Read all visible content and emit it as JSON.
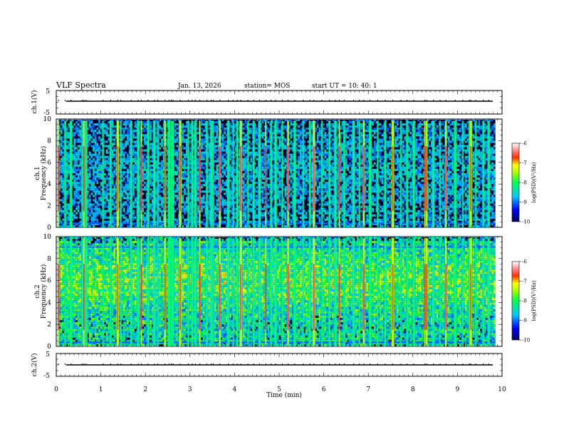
{
  "header": {
    "title": "VLF Spectra",
    "date": "Jan. 13, 2026",
    "station": "station= MOS",
    "start": "start  UT =   10: 40: 1"
  },
  "chart_data": [
    {
      "type": "line",
      "name": "ch1-waveform",
      "ylabel": "ch.1(V)",
      "ylim": [
        -5,
        5
      ],
      "yticks": [
        "5",
        "-5"
      ],
      "xlim": [
        0,
        10
      ],
      "series": [
        {
          "name": "ch.1",
          "x": [
            0,
            10
          ],
          "values": [
            0,
            0
          ]
        }
      ]
    },
    {
      "type": "heatmap",
      "name": "ch1-spectrogram",
      "ylabel": "ch.1 Frequency (kHz)",
      "ylim": [
        0,
        10
      ],
      "yticks": [
        "0",
        "2",
        "4",
        "6",
        "8",
        "10"
      ],
      "xlim": [
        0,
        10
      ],
      "colorbar": {
        "label": "log(PSD)(V²/Hz)",
        "range": [
          -10,
          -6
        ],
        "ticks": [
          "-6",
          "-7",
          "-8",
          "-9",
          "-10"
        ]
      },
      "sferic_times_min": [
        0.05,
        0.2,
        0.33,
        0.58,
        0.62,
        0.67,
        1.05,
        1.22,
        1.38,
        1.45,
        1.68,
        1.84,
        1.91,
        2.06,
        2.2,
        2.28,
        2.44,
        2.53,
        2.58,
        2.62,
        2.78,
        2.96,
        3.05,
        3.12,
        3.22,
        3.38,
        3.48,
        3.52,
        3.67,
        3.86,
        3.97,
        4.06,
        4.14,
        4.3,
        4.43,
        4.56,
        4.7,
        4.82,
        4.92,
        5.07,
        5.2,
        5.35,
        5.54,
        5.69,
        5.78,
        5.96,
        6.13,
        6.26,
        6.35,
        6.46,
        6.67,
        6.8,
        6.9,
        7.04,
        7.21,
        7.38,
        7.55,
        7.73,
        7.87,
        8.02,
        8.27,
        8.31,
        8.46,
        8.61,
        8.74,
        8.95,
        9.12,
        9.27,
        9.3,
        9.41,
        9.58,
        9.7
      ]
    },
    {
      "type": "heatmap",
      "name": "ch2-spectrogram",
      "ylabel": "ch.2 Frequency (kHz)",
      "ylim": [
        0,
        10
      ],
      "yticks": [
        "0",
        "2",
        "4",
        "6",
        "8",
        "10"
      ],
      "xlim": [
        0,
        10
      ],
      "colorbar": {
        "label": "log(PSD)(V²/Hz)",
        "range": [
          -10,
          -6
        ],
        "ticks": [
          "-6",
          "-7",
          "-8",
          "-9",
          "-10"
        ]
      },
      "sferic_times_min": [
        0.05,
        0.2,
        0.33,
        0.58,
        0.62,
        0.67,
        1.05,
        1.22,
        1.38,
        1.45,
        1.68,
        1.84,
        1.91,
        2.06,
        2.2,
        2.28,
        2.44,
        2.53,
        2.58,
        2.62,
        2.78,
        2.96,
        3.05,
        3.12,
        3.22,
        3.38,
        3.48,
        3.52,
        3.67,
        3.86,
        3.97,
        4.06,
        4.14,
        4.3,
        4.43,
        4.56,
        4.7,
        4.82,
        4.92,
        5.07,
        5.2,
        5.35,
        5.54,
        5.69,
        5.78,
        5.96,
        6.13,
        6.26,
        6.35,
        6.46,
        6.67,
        6.8,
        6.9,
        7.04,
        7.21,
        7.38,
        7.55,
        7.73,
        7.87,
        8.02,
        8.27,
        8.31,
        8.46,
        8.61,
        8.74,
        8.95,
        9.12,
        9.27,
        9.3,
        9.41,
        9.58,
        9.7
      ]
    },
    {
      "type": "line",
      "name": "ch2-waveform",
      "ylabel": "ch.2(V)",
      "ylim": [
        -5,
        5
      ],
      "yticks": [
        "5",
        "-5"
      ],
      "xlim": [
        0,
        10
      ],
      "xlabel": "Time  (min)",
      "xticks": [
        "0",
        "1",
        "2",
        "3",
        "4",
        "5",
        "6",
        "7",
        "8",
        "9",
        "10"
      ],
      "series": [
        {
          "name": "ch.2",
          "x": [
            0,
            10
          ],
          "values": [
            0,
            0
          ]
        }
      ]
    }
  ]
}
